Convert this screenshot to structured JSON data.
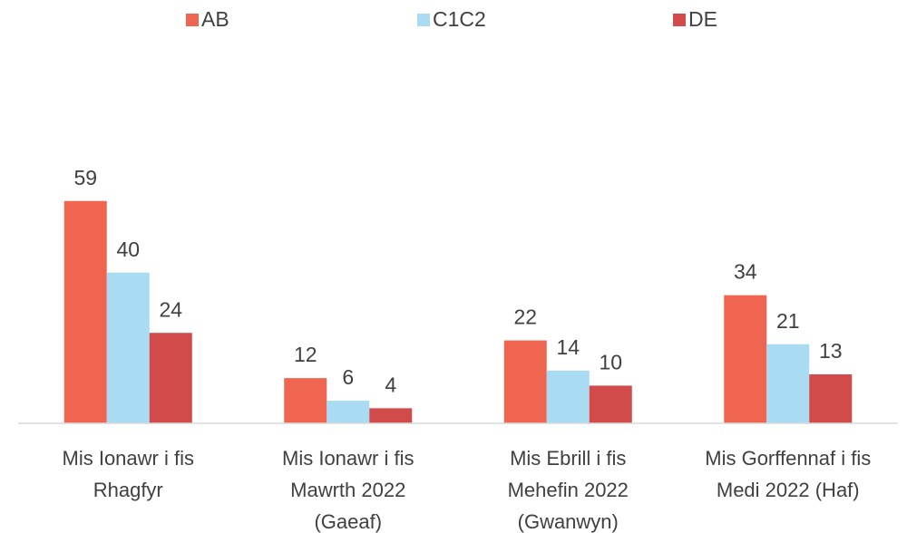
{
  "chart_data": {
    "type": "bar",
    "categories": [
      "Mis Ionawr i fis Rhagfyr",
      "Mis Ionawr i fis Mawrth 2022 (Gaeaf)",
      "Mis Ebrill i fis Mehefin 2022 (Gwanwyn)",
      "Mis Gorffennaf i fis Medi 2022 (Haf)"
    ],
    "series": [
      {
        "name": "AB",
        "color": "#f0654f",
        "values": [
          59,
          12,
          22,
          34
        ]
      },
      {
        "name": "C1C2",
        "color": "#a9dcf3",
        "values": [
          40,
          6,
          14,
          21
        ]
      },
      {
        "name": "DE",
        "color": "#d14b4b",
        "values": [
          24,
          4,
          10,
          13
        ]
      }
    ],
    "ylim": [
      0,
      70
    ],
    "legend": "top"
  }
}
